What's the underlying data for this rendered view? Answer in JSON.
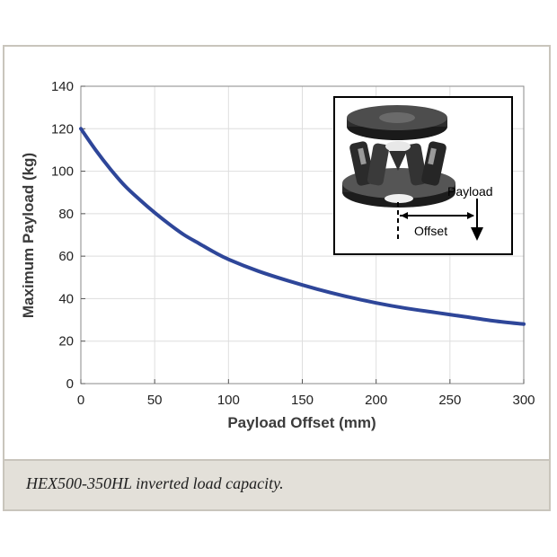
{
  "caption": "HEX500-350HL inverted load capacity.",
  "inset": {
    "image_icon": "hexapod-photo",
    "payload_label": "Payload",
    "offset_label": "Offset"
  },
  "colors": {
    "curve": "#2e4699",
    "grid": "#dedede",
    "caption_bg": "#e3e0d9",
    "frame": "#c9c5bc"
  },
  "chart_data": {
    "type": "line",
    "xlabel": "Payload Offset (mm)",
    "ylabel": "Maximum Payload (kg)",
    "xlim": [
      0,
      300
    ],
    "ylim": [
      0,
      140
    ],
    "x_ticks": [
      0,
      50,
      100,
      150,
      200,
      250,
      300
    ],
    "y_ticks": [
      0,
      20,
      40,
      60,
      80,
      100,
      120,
      140
    ],
    "grid": true,
    "series": [
      {
        "x": [
          0,
          10,
          20,
          30,
          40,
          50,
          60,
          70,
          80,
          90,
          100,
          120,
          140,
          160,
          180,
          200,
          220,
          240,
          260,
          280,
          300
        ],
        "values": [
          120,
          110,
          101,
          93,
          86.5,
          80.5,
          75,
          70,
          66,
          62,
          58.5,
          53,
          48.5,
          44.5,
          41,
          38,
          35.5,
          33.5,
          31.5,
          29.5,
          28
        ]
      }
    ]
  }
}
